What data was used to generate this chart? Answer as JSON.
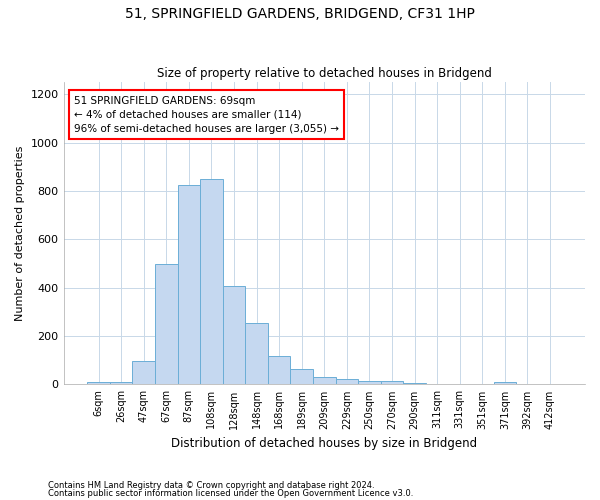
{
  "title_line1": "51, SPRINGFIELD GARDENS, BRIDGEND, CF31 1HP",
  "title_line2": "Size of property relative to detached houses in Bridgend",
  "xlabel": "Distribution of detached houses by size in Bridgend",
  "ylabel": "Number of detached properties",
  "footnote1": "Contains HM Land Registry data © Crown copyright and database right 2024.",
  "footnote2": "Contains public sector information licensed under the Open Government Licence v3.0.",
  "annotation_title": "51 SPRINGFIELD GARDENS: 69sqm",
  "annotation_line2": "← 4% of detached houses are smaller (114)",
  "annotation_line3": "96% of semi-detached houses are larger (3,055) →",
  "bar_labels": [
    "6sqm",
    "26sqm",
    "47sqm",
    "67sqm",
    "87sqm",
    "108sqm",
    "128sqm",
    "148sqm",
    "168sqm",
    "189sqm",
    "209sqm",
    "229sqm",
    "250sqm",
    "270sqm",
    "290sqm",
    "311sqm",
    "331sqm",
    "351sqm",
    "371sqm",
    "392sqm",
    "412sqm"
  ],
  "bar_values": [
    10,
    12,
    98,
    498,
    825,
    848,
    405,
    253,
    118,
    65,
    32,
    22,
    13,
    14,
    4,
    3,
    2,
    1,
    12,
    2,
    1
  ],
  "bar_color": "#c5d8f0",
  "bar_edge_color": "#6baed6",
  "ylim": [
    0,
    1250
  ],
  "yticks": [
    0,
    200,
    400,
    600,
    800,
    1000,
    1200
  ],
  "background_color": "#ffffff",
  "grid_color": "#c8d8e8"
}
